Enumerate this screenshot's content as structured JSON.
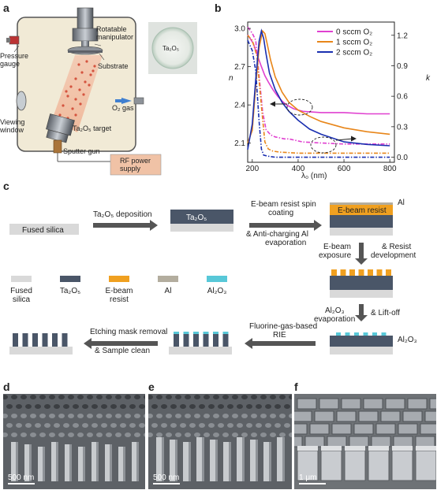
{
  "panels": {
    "a": "a",
    "b": "b",
    "c": "c",
    "d": "d",
    "e": "e",
    "f": "f"
  },
  "panel_a": {
    "manipulator": [
      "Rotatable",
      "manipulator"
    ],
    "substrate": "Substrate",
    "pressure": [
      "Pressure",
      "gauge"
    ],
    "o2gas": "O₂ gas",
    "viewing": [
      "Viewing",
      "window"
    ],
    "target": "Ta₂O₅ target",
    "gun": "Sputter gun",
    "rf": [
      "RF power",
      "supply"
    ],
    "sample": "Ta₂O₅"
  },
  "chart_data": {
    "type": "line",
    "xlabel": "λ₀ (nm)",
    "ylabel_left": "n",
    "ylabel_right": "k",
    "xlim": [
      180,
      820
    ],
    "ylim_left": [
      1.95,
      3.05
    ],
    "ylim_right": [
      -0.05,
      1.33
    ],
    "xticks": [
      "200",
      "400",
      "600",
      "800"
    ],
    "yticks_left": [
      "2.1",
      "2.4",
      "2.7",
      "3.0"
    ],
    "yticks_right": [
      "0.0",
      "0.3",
      "0.6",
      "0.9",
      "1.2"
    ],
    "series": [
      {
        "name": "0 sccm O₂",
        "color": "#e040d0",
        "n": {
          "x": [
            180,
            205,
            220,
            240,
            255,
            270,
            290,
            310,
            330,
            350,
            380,
            420,
            500,
            600,
            700,
            800
          ],
          "y": [
            2.95,
            2.88,
            2.8,
            2.7,
            2.63,
            2.58,
            2.52,
            2.47,
            2.43,
            2.4,
            2.37,
            2.35,
            2.34,
            2.34,
            2.33,
            2.33
          ]
        },
        "k": {
          "x": [
            180,
            200,
            215,
            230,
            245,
            260,
            280,
            300,
            320,
            340,
            360,
            380,
            420,
            500,
            600,
            700,
            800
          ],
          "y": [
            1.28,
            1.22,
            1.15,
            0.8,
            0.45,
            0.27,
            0.22,
            0.2,
            0.19,
            0.18,
            0.18,
            0.17,
            0.15,
            0.14,
            0.13,
            0.13,
            0.13
          ]
        }
      },
      {
        "name": "1 sccm O₂",
        "color": "#e8861a",
        "n": {
          "x": [
            180,
            200,
            215,
            230,
            245,
            255,
            265,
            280,
            300,
            330,
            360,
            400,
            450,
            500,
            600,
            700,
            800
          ],
          "y": [
            2.1,
            2.2,
            2.55,
            2.85,
            2.98,
            2.96,
            2.88,
            2.75,
            2.62,
            2.5,
            2.42,
            2.36,
            2.31,
            2.27,
            2.22,
            2.19,
            2.17
          ]
        },
        "k": {
          "x": [
            180,
            200,
            220,
            240,
            255,
            270,
            290,
            320,
            400,
            500,
            600,
            700,
            800
          ],
          "y": [
            1.2,
            1.15,
            1.0,
            0.5,
            0.15,
            0.08,
            0.06,
            0.05,
            0.04,
            0.04,
            0.04,
            0.04,
            0.04
          ]
        }
      },
      {
        "name": "2 sccm O₂",
        "color": "#1a2fb0",
        "n": {
          "x": [
            180,
            200,
            215,
            230,
            240,
            250,
            260,
            275,
            300,
            330,
            360,
            400,
            450,
            500,
            600,
            700,
            800
          ],
          "y": [
            2.05,
            2.25,
            2.6,
            2.9,
            2.98,
            2.92,
            2.8,
            2.65,
            2.52,
            2.42,
            2.35,
            2.28,
            2.21,
            2.17,
            2.11,
            2.09,
            2.08
          ]
        },
        "k": {
          "x": [
            180,
            200,
            215,
            230,
            240,
            250,
            270,
            300,
            400,
            500,
            600,
            700,
            800
          ],
          "y": [
            1.15,
            1.05,
            0.85,
            0.35,
            0.08,
            0.02,
            0.01,
            0.0,
            0.0,
            0.0,
            0.0,
            0.0,
            0.0
          ]
        }
      }
    ]
  },
  "panel_c": {
    "fused_silica": "Fused silica",
    "step1": "Ta₂O₅ deposition",
    "ta2o5_layer": "Ta₂O₅",
    "step2a": "E-beam resist spin",
    "step2b": "coating",
    "step2c": "& Anti-charging Al",
    "step2d": "evaporation",
    "ebeam_layer": "E-beam resist",
    "al_label": "Al",
    "step3a": "E-beam",
    "step3b": "exposure",
    "step3c": "& Resist",
    "step3d": "development",
    "step4a": "Al₂O₃",
    "step4b": "evaporation",
    "step4c": "& Lift-off",
    "al2o3_label": "Al₂O₃",
    "step5a": "Fluorine-gas-based",
    "step5b": "RIE",
    "step6a": "Etching mask removal",
    "step6b": "& Sample clean",
    "legend": [
      {
        "name": [
          "Fused",
          "silica"
        ],
        "color": "#d9d9d9"
      },
      {
        "name": [
          "Ta₂O₅",
          ""
        ],
        "color": "#4a5668"
      },
      {
        "name": [
          "E-beam",
          "resist"
        ],
        "color": "#f0a020"
      },
      {
        "name": [
          "Al",
          ""
        ],
        "color": "#b3ad9e"
      },
      {
        "name": [
          "Al₂O₃",
          ""
        ],
        "color": "#58c8d8"
      }
    ]
  },
  "sem": {
    "d_scale": "500 nm",
    "e_scale": "500 nm",
    "f_scale": "1 μm"
  }
}
